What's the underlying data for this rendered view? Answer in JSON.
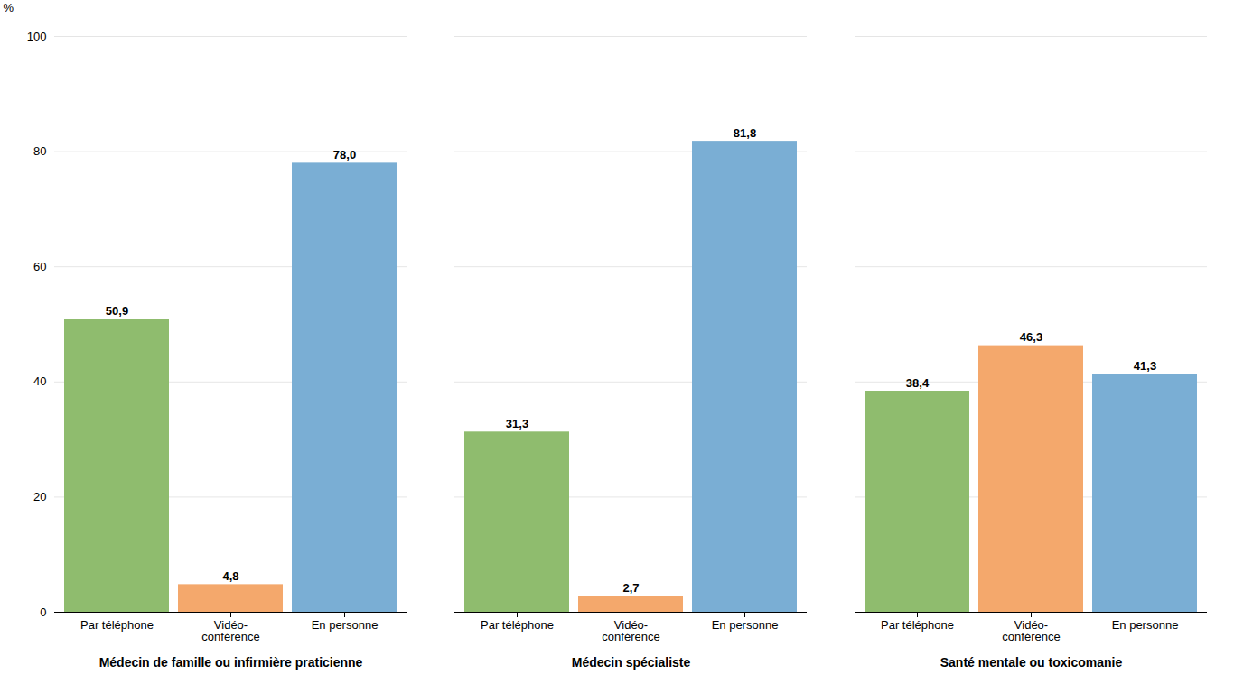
{
  "chart_data": {
    "type": "bar",
    "ylabel": "%",
    "categories": [
      "Médecin de famille ou infirmière praticienne",
      "Médecin spécialiste",
      "Santé mentale ou toxicomanie"
    ],
    "series": [
      {
        "name": "Par téléphone",
        "color": "#8fbc6e",
        "values": [
          50.9,
          31.3,
          38.4
        ],
        "value_labels": [
          "50,9",
          "31,3",
          "38,4"
        ]
      },
      {
        "name": "Vidéo-\nconférence",
        "color": "#f4a86c",
        "values": [
          4.8,
          2.7,
          46.3
        ],
        "value_labels": [
          "4,8",
          "2,7",
          "46,3"
        ]
      },
      {
        "name": "En personne",
        "color": "#7aaed4",
        "values": [
          78.0,
          81.8,
          41.3
        ],
        "value_labels": [
          "78,0",
          "81,8",
          "41,3"
        ]
      }
    ],
    "ylim": [
      0,
      100
    ],
    "yticks": [
      0,
      20,
      40,
      60,
      80,
      100
    ],
    "grid": true,
    "data_labels": true
  }
}
